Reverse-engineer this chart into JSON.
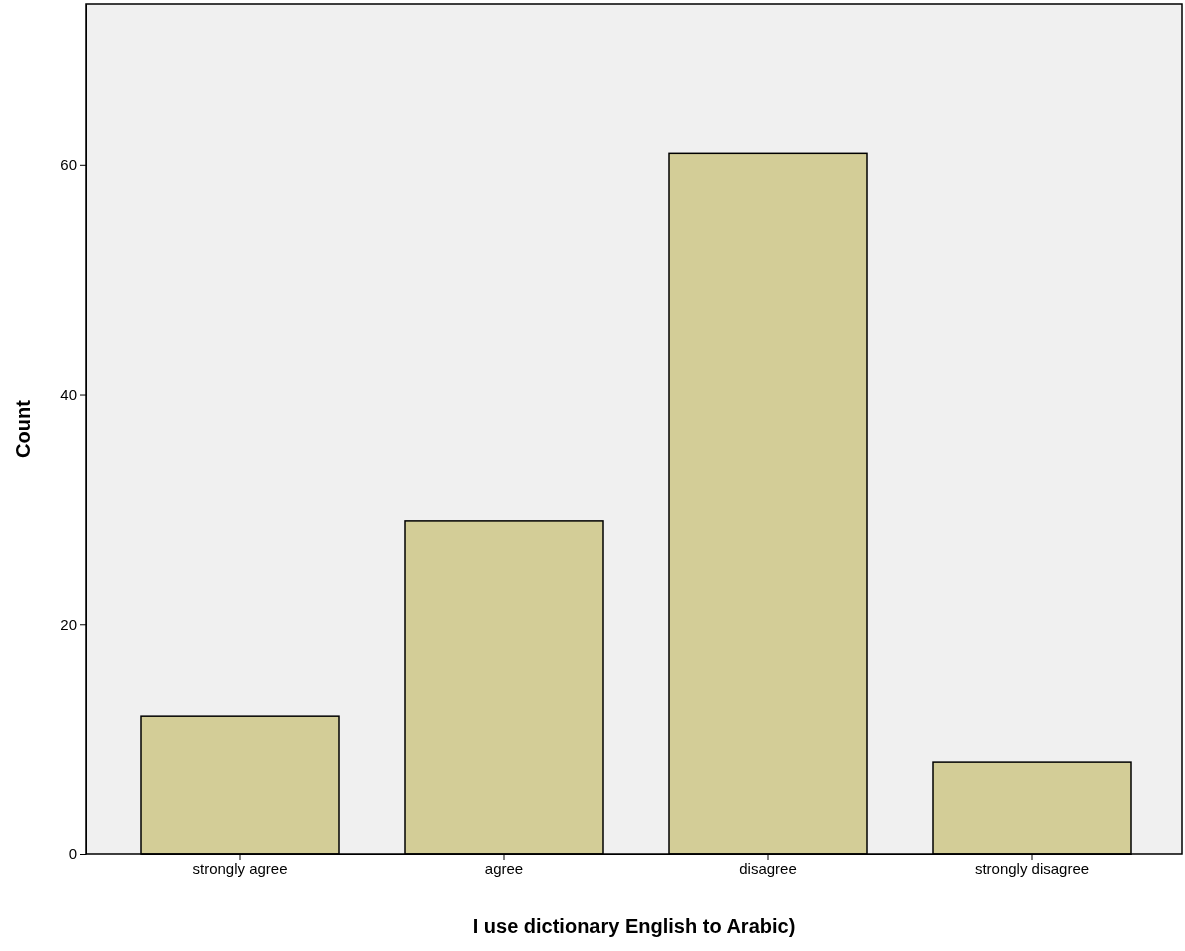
{
  "chart_data": {
    "type": "bar",
    "xlabel": "I use dictionary English to Arabic)",
    "ylabel": "Count",
    "categories": [
      "strongly agree",
      "agree",
      "disagree",
      "strongly disagree"
    ],
    "values": [
      12,
      29,
      61,
      8
    ],
    "color": "#d3cd97",
    "ylim": [
      0,
      74
    ],
    "yticks": [
      0,
      20,
      40,
      60
    ],
    "grid": false
  }
}
